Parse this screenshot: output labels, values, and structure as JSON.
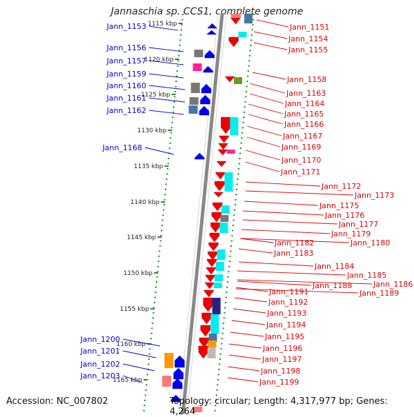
{
  "title": "Jannaschia sp. CCS1, complete genome",
  "accession_text": "Accession: NC_007802",
  "summary_text": "Topology: circular; Length: 4,317,977 bp; Genes: 4,264",
  "colors": {
    "forward": "#0000ee",
    "reverse": "#ee0000",
    "backbone": "#888888",
    "ticks": "#228822",
    "tick_label": "#222222",
    "link_blue": "#0000cc",
    "link_red": "#dd0000",
    "cyan": "#00eeee",
    "magenta": "#ff2299",
    "olive": "#669922",
    "steelblue": "#4477aa",
    "gray": "#777777",
    "navy": "#222288",
    "orange": "#ff9900",
    "pink": "#ff7777",
    "silver": "#bbbbbb"
  },
  "kbp_ticks": [
    "1115 kbp",
    "1120 kbp",
    "1125 kbp",
    "1130 kbp",
    "1135 kbp",
    "1140 kbp",
    "1145 kbp",
    "1150 kbp",
    "1155 kbp",
    "1160 kbp",
    "1165 kbp"
  ],
  "left_labels": [
    "Jann_1153",
    "Jann_1156",
    "Jann_1157",
    "Jann_1159",
    "Jann_1160",
    "Jann_1161",
    "Jann_1162",
    "Jann_1168",
    "Jann_1200",
    "Jann_1201",
    "Jann_1202",
    "Jann_1203"
  ],
  "right_labels": [
    "Jann_1151",
    "Jann_1154",
    "Jann_1155",
    "Jann_1158",
    "Jann_1163",
    "Jann_1164",
    "Jann_1165",
    "Jann_1166",
    "Jann_1167",
    "Jann_1169",
    "Jann_1170",
    "Jann_1171",
    "Jann_1172",
    "Jann_1173",
    "Jann_1175",
    "Jann_1176",
    "Jann_1177",
    "Jann_1179",
    "Jann_1180",
    "Jann_1182",
    "Jann_1183",
    "Jann_1184",
    "Jann_1185",
    "Jann_1186",
    "Jann_1188",
    "Jann_1189",
    "Jann_1191",
    "Jann_1192",
    "Jann_1193",
    "Jann_1194",
    "Jann_1195",
    "Jann_1196",
    "Jann_1197",
    "Jann_1198",
    "Jann_1199"
  ]
}
